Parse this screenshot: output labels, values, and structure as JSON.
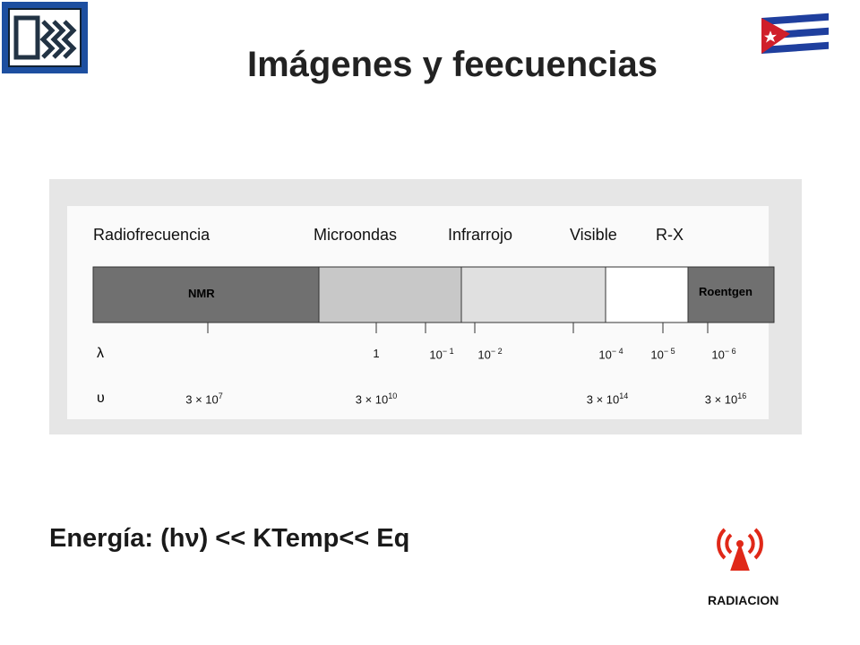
{
  "title": "Imágenes y feecuencias",
  "figure": {
    "region_labels": [
      "Radiofrecuencia",
      "Microondas",
      "Infrarrojo",
      "Visible",
      "R-X"
    ],
    "bands": [
      "NMR",
      "Roentgen"
    ],
    "lambda": {
      "symbol": "λ",
      "values": [
        {
          "base": "1"
        },
        {
          "base": "10",
          "exp": "− 1"
        },
        {
          "base": "10",
          "exp": "− 2"
        },
        {
          "base": "10",
          "exp": "− 4"
        },
        {
          "base": "10",
          "exp": "− 5"
        },
        {
          "base": "10",
          "exp": "− 6"
        }
      ]
    },
    "nu": {
      "symbol": "υ",
      "values": [
        {
          "base": "3 × 10",
          "exp": "7"
        },
        {
          "base": "3 × 10",
          "exp": "10"
        },
        {
          "base": "3 × 10",
          "exp": "14"
        },
        {
          "base": "3 × 10",
          "exp": "16"
        }
      ]
    }
  },
  "formula": "Energía: (hν) << KTemp<< Eq",
  "icon_label": "RADIACION"
}
